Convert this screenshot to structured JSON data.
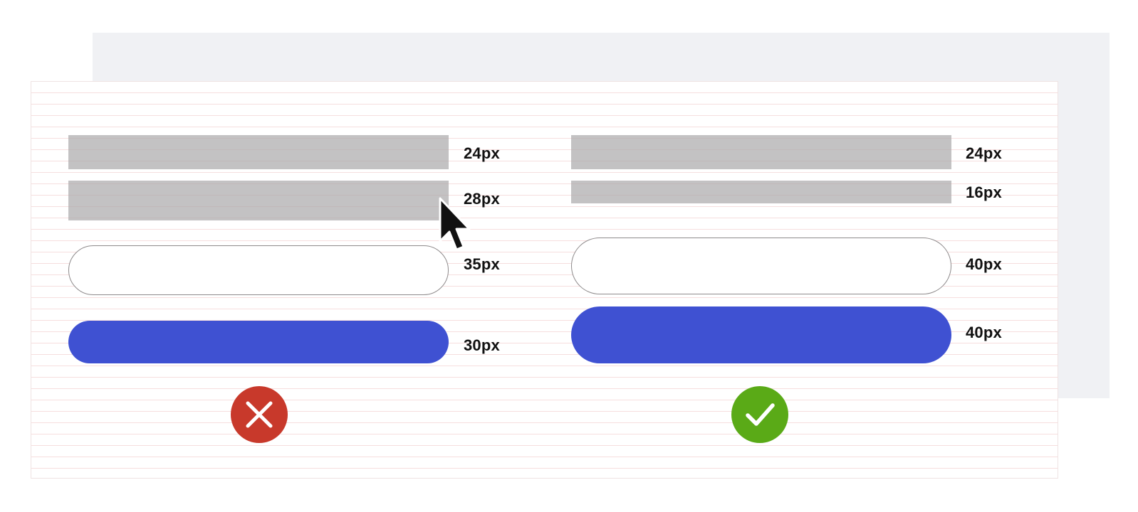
{
  "wrong_example": {
    "heading_height_label": "24px",
    "subheading_height_label": "28px",
    "input_height_label": "35px",
    "button_height_label": "30px",
    "status_icon": "x-mark-icon",
    "status_color": "#c8392b"
  },
  "right_example": {
    "heading_height_label": "24px",
    "subheading_height_label": "16px",
    "input_height_label": "40px",
    "button_height_label": "40px",
    "status_icon": "checkmark-icon",
    "status_color": "#5aaa17"
  },
  "colors": {
    "placeholder_block": "#b3b1b3",
    "primary_button": "#3f51d2",
    "input_border": "#8e8a8b",
    "grid_lines": "#f6dede",
    "backdrop": "#f0f1f4"
  },
  "pointer_icon": "mouse-cursor-icon"
}
